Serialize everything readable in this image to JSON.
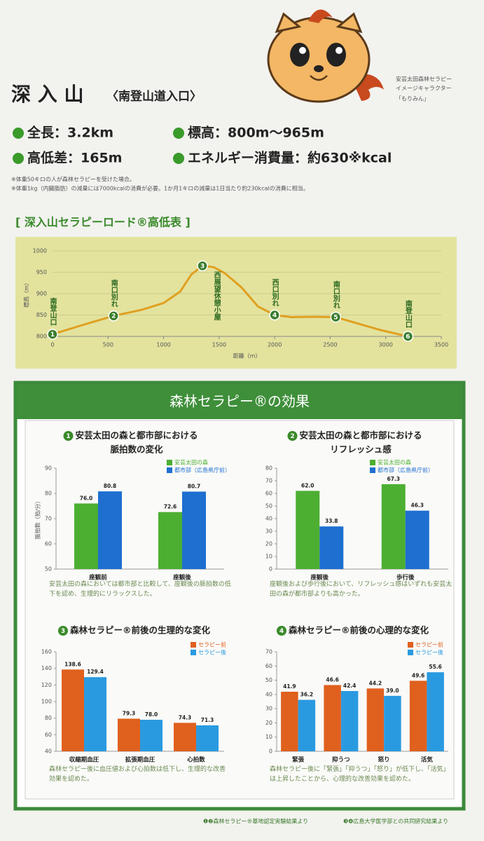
{
  "header": {
    "title": "深 入 山",
    "subtitle": "〈南登山道入口〉",
    "mascot_caption": [
      "安芸太田森林セラピー",
      "イメージキャラクター",
      "「もりみん」"
    ]
  },
  "stats": [
    "全長：3.2km",
    "標高：800m〜965m",
    "高低差：165m",
    "エネルギー消費量：約630※kcal"
  ],
  "notes": [
    "※体重50キロの人が森林セラピーを受けた場合。",
    "※体重1kg（内臓脂肪）の減量には7000kcalの消費が必要。1か月1キロの減量は1日当たり約230kcalの消費に相当。"
  ],
  "section_title": "森林セラピー®の効果",
  "footnotes": [
    "❶❷森林セラピー®基地認定実験結果より",
    "❸❹広島大学医学部との共同研究結果より"
  ],
  "chart_data": [
    {
      "type": "line",
      "title": "[ 深入山セラピーロード®高低表 ]",
      "xlabel": "距離（m）",
      "ylabel": "標高（m）",
      "x": [
        0,
        250,
        550,
        800,
        1000,
        1150,
        1250,
        1350,
        1450,
        1550,
        1700,
        1850,
        2000,
        2150,
        2350,
        2550,
        2750,
        2950,
        3200
      ],
      "series": [
        {
          "color": "#e0a020",
          "values": [
            805,
            825,
            848,
            862,
            878,
            905,
            945,
            965,
            962,
            948,
            915,
            870,
            850,
            845,
            846,
            845,
            830,
            815,
            800
          ]
        }
      ],
      "waypoints": {
        "numbers": [
          "1",
          "2",
          "3",
          "4",
          "5",
          "6"
        ],
        "labels": [
          "南登山口",
          "南口別れ",
          "西展望休憩小屋",
          "西口別れ",
          "南口別れ",
          "南登山口"
        ],
        "x": [
          0,
          550,
          1350,
          2000,
          2550,
          3200
        ],
        "values": [
          805,
          848,
          965,
          850,
          845,
          800
        ],
        "color": "#3a7d2c"
      },
      "xlim": [
        0,
        3500
      ],
      "ylim": [
        800,
        1000
      ],
      "xticks": [
        0,
        500,
        1000,
        1500,
        2000,
        2500,
        3000,
        3500
      ],
      "yticks": [
        800,
        850,
        900,
        950,
        1000
      ],
      "grid": true
    },
    {
      "type": "bar",
      "number": "1",
      "title": [
        "安芸太田の森と都市部における",
        "脈拍数の変化"
      ],
      "ylabel": "脈拍数（拍/分）",
      "categories": [
        "座観前",
        "座観後"
      ],
      "series": [
        {
          "name": "安芸太田の森",
          "color": "#4caf32",
          "values": [
            76.0,
            72.6
          ],
          "value_labels": [
            "76.0",
            "72.6"
          ]
        },
        {
          "name": "都市部（広島県庁前）",
          "color": "#1e6fd0",
          "values": [
            80.8,
            80.7
          ],
          "value_labels": [
            "80.8",
            "80.7"
          ]
        }
      ],
      "ylim": [
        50,
        90
      ],
      "yticks": [
        50,
        60,
        70,
        80,
        90
      ],
      "caption": "安芸太田の森においては都市部と比較して、座観後の脈拍数の低下を認め、生理的にリラックスした。"
    },
    {
      "type": "bar",
      "number": "2",
      "title": [
        "安芸太田の森と都市部における",
        "リフレッシュ感"
      ],
      "categories": [
        "座観後",
        "歩行後"
      ],
      "series": [
        {
          "name": "安芸太田の森",
          "color": "#4caf32",
          "values": [
            62.0,
            67.3
          ],
          "value_labels": [
            "62.0",
            "67.3"
          ]
        },
        {
          "name": "都市部（広島県庁前）",
          "color": "#1e6fd0",
          "values": [
            33.8,
            46.3
          ],
          "value_labels": [
            "33.8",
            "46.3"
          ]
        }
      ],
      "ylim": [
        0,
        80
      ],
      "yticks": [
        0,
        10,
        20,
        30,
        40,
        50,
        60,
        70,
        80
      ],
      "caption": "座観後および歩行後において、リフレッシュ感はいずれも安芸太田の森が都市部よりも高かった。"
    },
    {
      "type": "bar",
      "number": "3",
      "title": [
        "森林セラピー®前後の生理的な変化"
      ],
      "categories": [
        "収縮期血圧",
        "拡張期血圧",
        "心拍数"
      ],
      "series": [
        {
          "name": "セラピー前",
          "color": "#e0601e",
          "values": [
            138.6,
            79.3,
            74.3
          ],
          "value_labels": [
            "138.6",
            "79.3",
            "74.3"
          ]
        },
        {
          "name": "セラピー後",
          "color": "#2a9ae0",
          "values": [
            129.4,
            78.0,
            71.3
          ],
          "value_labels": [
            "129.4",
            "78.0",
            "71.3"
          ]
        }
      ],
      "ylim": [
        40,
        160
      ],
      "yticks": [
        40,
        60,
        80,
        100,
        120,
        140,
        160
      ],
      "caption": "森林セラピー後に血圧値および心拍数は低下し、生理的な改善効果を認めた。"
    },
    {
      "type": "bar",
      "number": "4",
      "title": [
        "森林セラピー®前後の心理的な変化"
      ],
      "categories": [
        "緊張",
        "抑うつ",
        "怒り",
        "活気"
      ],
      "series": [
        {
          "name": "セラピー前",
          "color": "#e0601e",
          "values": [
            41.9,
            46.6,
            44.2,
            49.6
          ],
          "value_labels": [
            "41.9",
            "46.6",
            "44.2",
            "49.6"
          ]
        },
        {
          "name": "セラピー後",
          "color": "#2a9ae0",
          "values": [
            36.2,
            42.4,
            39.0,
            55.6
          ],
          "value_labels": [
            "36.2",
            "42.4",
            "39.0",
            "55.6"
          ]
        }
      ],
      "ylim": [
        0,
        70
      ],
      "yticks": [
        0,
        10,
        20,
        30,
        40,
        50,
        60,
        70
      ],
      "caption": "森林セラピー後に「緊張」「抑うつ」「怒り」が低下し、「活気」は上昇したことから、心理的な改善効果を認めた。"
    }
  ]
}
